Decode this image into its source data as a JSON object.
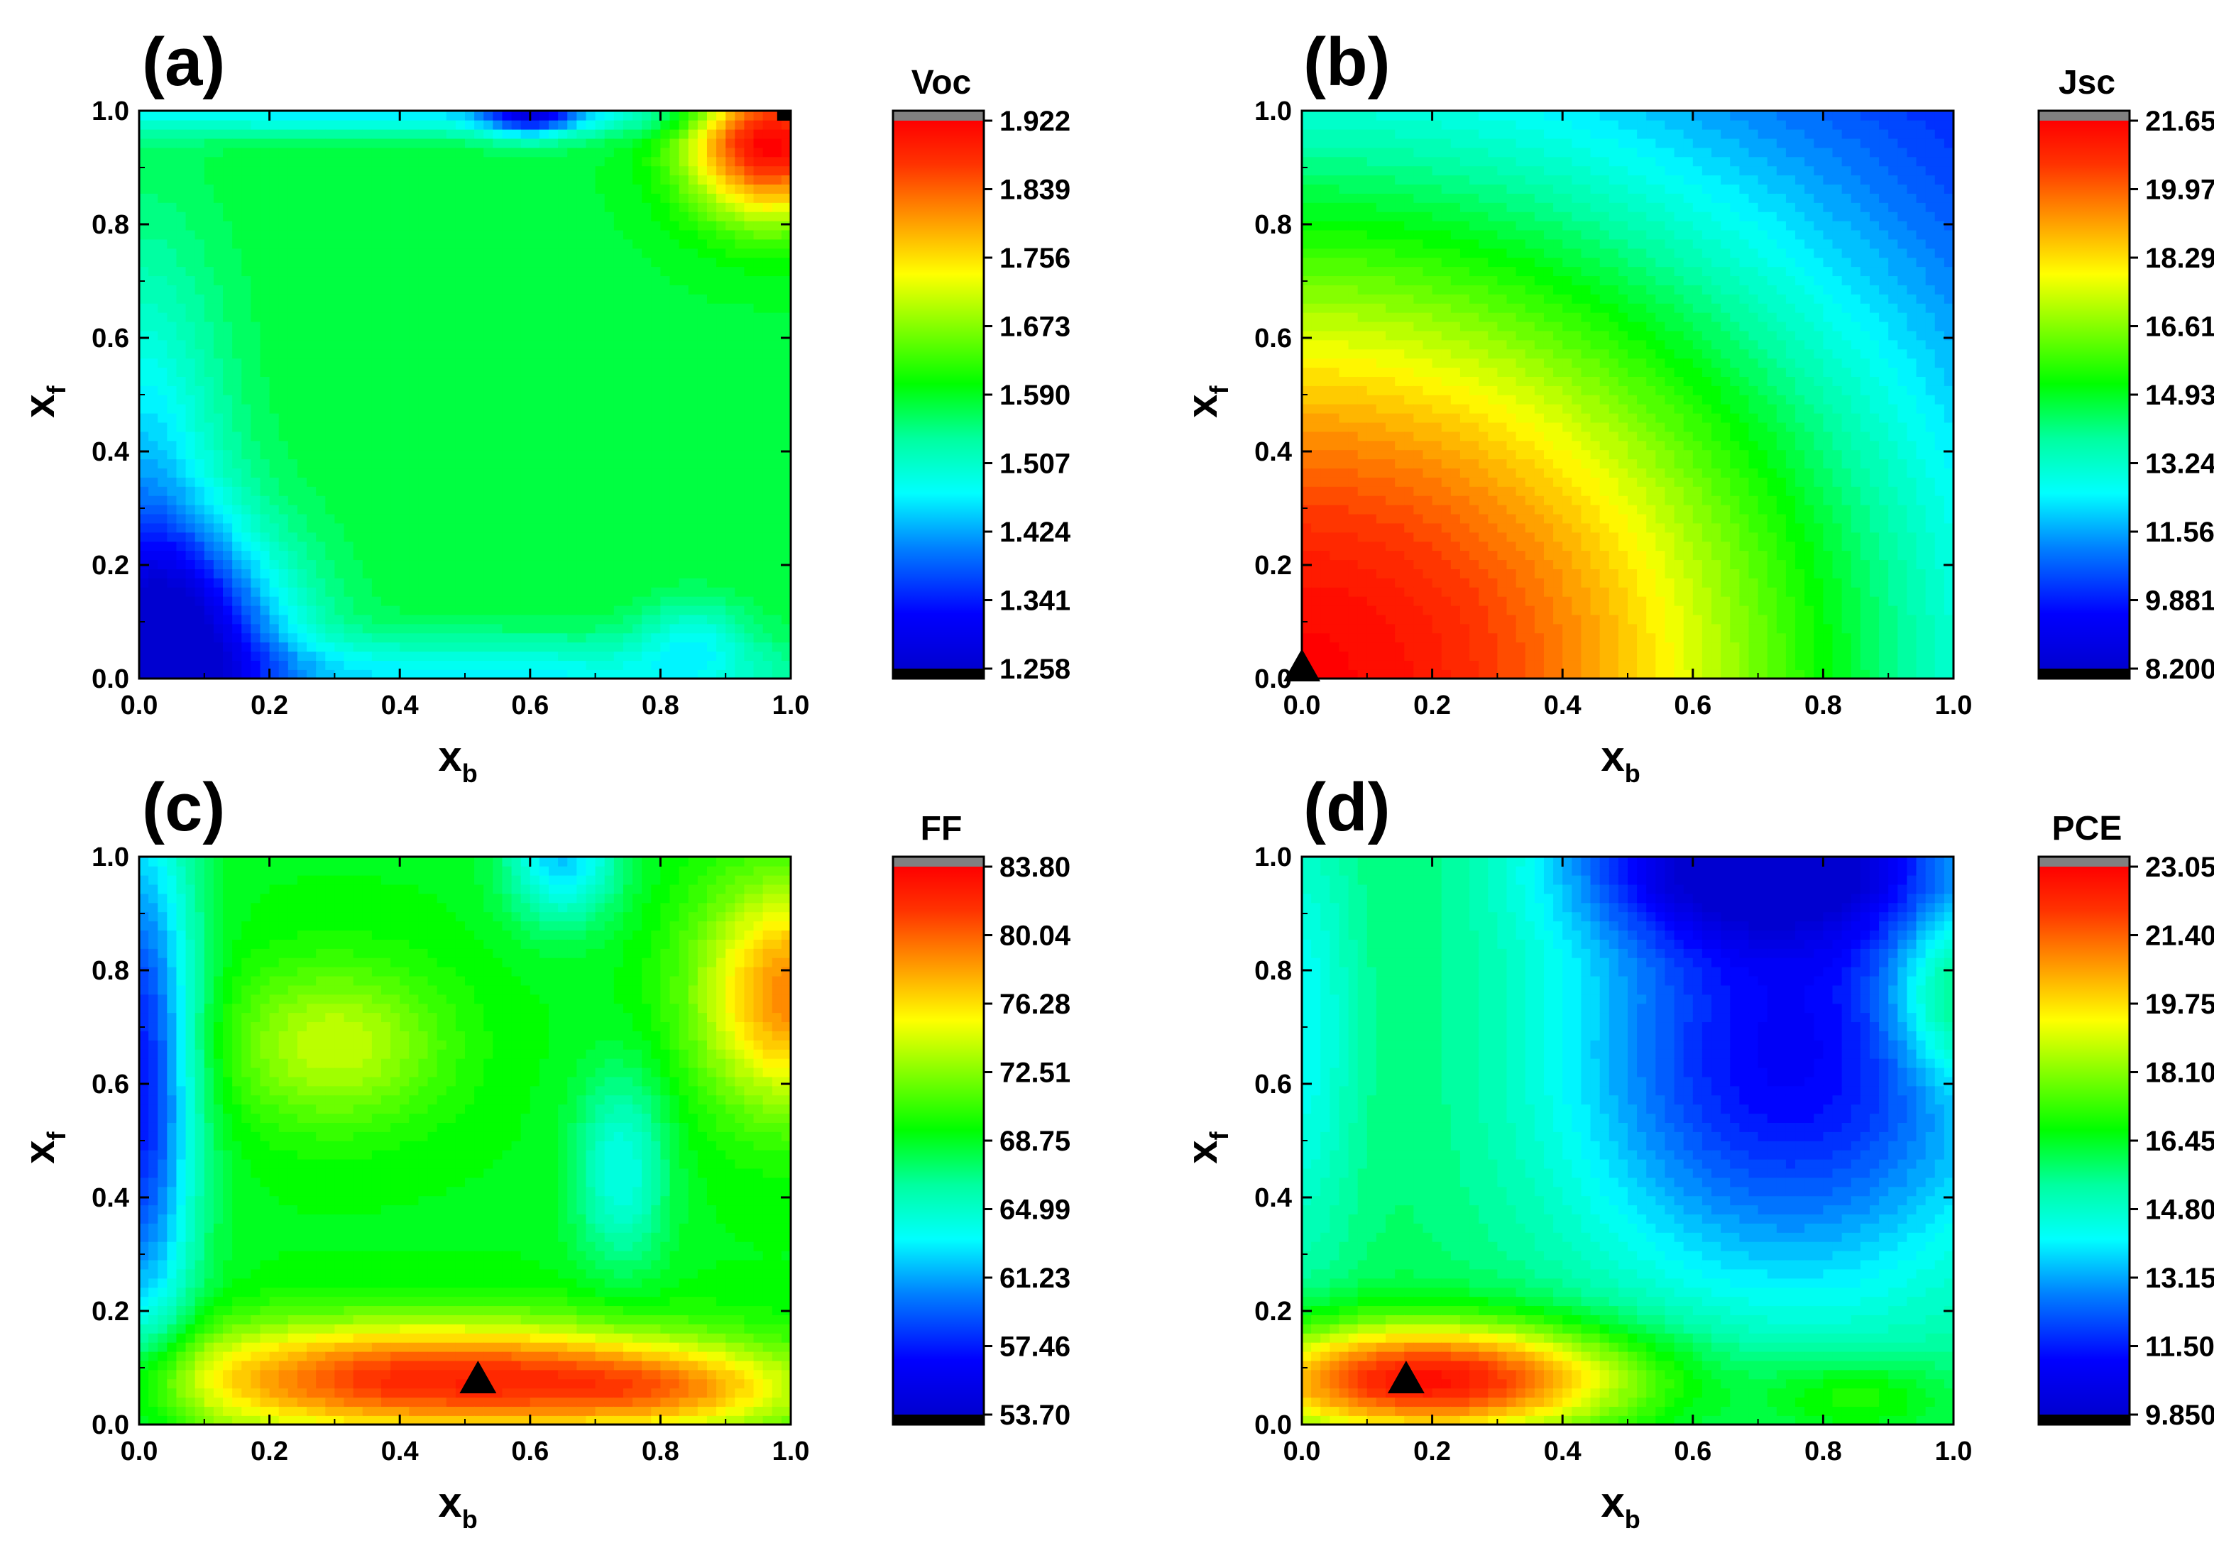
{
  "figure": {
    "description_panels": [
      "a",
      "b",
      "c",
      "d"
    ]
  },
  "chart_data": [
    {
      "type": "heatmap",
      "panel_label": "(a)",
      "title": "Voc",
      "xlabel": "x",
      "xlabel_sub": "b",
      "ylabel": "x",
      "ylabel_sub": "f",
      "xlim": [
        0.0,
        1.0
      ],
      "ylim": [
        0.0,
        1.0
      ],
      "xticks": [
        "0.0",
        "0.2",
        "0.4",
        "0.6",
        "0.8",
        "1.0"
      ],
      "yticks": [
        "0.0",
        "0.2",
        "0.4",
        "0.6",
        "0.8",
        "1.0"
      ],
      "colorbar": {
        "label": "Voc",
        "min": 1.258,
        "max": 1.922,
        "ticks": [
          "1.922",
          "1.839",
          "1.756",
          "1.673",
          "1.590",
          "1.507",
          "1.424",
          "1.341",
          "1.258"
        ]
      },
      "optimum_marker": {
        "shape": "square",
        "x": 0.99,
        "y": 0.99
      },
      "field": {
        "bg": 1.58,
        "bumps": [
          {
            "x": 0.97,
            "y": 0.96,
            "amp": 0.36,
            "sx": 0.09,
            "sy": 0.1
          },
          {
            "x": 0.06,
            "y": 0.06,
            "amp": -0.28,
            "sx": 0.12,
            "sy": 0.14
          },
          {
            "x": 0.0,
            "y": 0.3,
            "amp": -0.14,
            "sx": 0.09,
            "sy": 0.3
          },
          {
            "x": 0.5,
            "y": 0.0,
            "amp": -0.12,
            "sx": 0.35,
            "sy": 0.05
          },
          {
            "x": 0.4,
            "y": 1.0,
            "amp": -0.12,
            "sx": 0.5,
            "sy": 0.03
          },
          {
            "x": 0.6,
            "y": 1.0,
            "amp": -0.2,
            "sx": 0.05,
            "sy": 0.03
          },
          {
            "x": 0.85,
            "y": 0.07,
            "amp": -0.08,
            "sx": 0.06,
            "sy": 0.05
          }
        ]
      }
    },
    {
      "type": "heatmap",
      "panel_label": "(b)",
      "title": "Jsc",
      "xlabel": "x",
      "xlabel_sub": "b",
      "ylabel": "x",
      "ylabel_sub": "f",
      "xlim": [
        0.0,
        1.0
      ],
      "ylim": [
        0.0,
        1.0
      ],
      "xticks": [
        "0.0",
        "0.2",
        "0.4",
        "0.6",
        "0.8",
        "1.0"
      ],
      "yticks": [
        "0.0",
        "0.2",
        "0.4",
        "0.6",
        "0.8",
        "1.0"
      ],
      "colorbar": {
        "label": "Jsc",
        "min": 8.2,
        "max": 21.65,
        "ticks": [
          "21.65",
          "19.97",
          "18.29",
          "16.61",
          "14.93",
          "13.24",
          "11.56",
          "9.881",
          "8.200"
        ]
      },
      "optimum_marker": {
        "shape": "triangle",
        "x": 0.0,
        "y": 0.02
      },
      "field": {
        "bg": 8.3,
        "bumps": [
          {
            "x": 0.0,
            "y": 0.0,
            "amp": 13.3,
            "sx": 0.7,
            "sy": 0.7
          }
        ]
      }
    },
    {
      "type": "heatmap",
      "panel_label": "(c)",
      "title": "FF",
      "xlabel": "x",
      "xlabel_sub": "b",
      "ylabel": "x",
      "ylabel_sub": "f",
      "xlim": [
        0.0,
        1.0
      ],
      "ylim": [
        0.0,
        1.0
      ],
      "xticks": [
        "0.0",
        "0.2",
        "0.4",
        "0.6",
        "0.8",
        "1.0"
      ],
      "yticks": [
        "0.0",
        "0.2",
        "0.4",
        "0.6",
        "0.8",
        "1.0"
      ],
      "colorbar": {
        "label": "FF",
        "min": 53.7,
        "max": 83.8,
        "ticks": [
          "83.80",
          "80.04",
          "76.28",
          "72.51",
          "68.75",
          "64.99",
          "61.23",
          "57.46",
          "53.70"
        ]
      },
      "optimum_marker": {
        "shape": "triangle",
        "x": 0.52,
        "y": 0.08
      },
      "field": {
        "bg": 69.0,
        "bumps": [
          {
            "x": 0.45,
            "y": 0.08,
            "amp": 13.0,
            "sx": 0.3,
            "sy": 0.07
          },
          {
            "x": 0.82,
            "y": 0.06,
            "amp": 5.0,
            "sx": 0.15,
            "sy": 0.05
          },
          {
            "x": 1.0,
            "y": 0.76,
            "amp": 10.0,
            "sx": 0.1,
            "sy": 0.14
          },
          {
            "x": 0.3,
            "y": 0.67,
            "amp": 5.0,
            "sx": 0.12,
            "sy": 0.1
          },
          {
            "x": 0.0,
            "y": 0.6,
            "amp": -12.0,
            "sx": 0.06,
            "sy": 0.35
          },
          {
            "x": 0.74,
            "y": 0.45,
            "amp": -5.0,
            "sx": 0.05,
            "sy": 0.12
          },
          {
            "x": 0.65,
            "y": 1.0,
            "amp": -7.0,
            "sx": 0.06,
            "sy": 0.08
          }
        ]
      }
    },
    {
      "type": "heatmap",
      "panel_label": "(d)",
      "title": "PCE",
      "xlabel": "x",
      "xlabel_sub": "b",
      "ylabel": "x",
      "ylabel_sub": "f",
      "xlim": [
        0.0,
        1.0
      ],
      "ylim": [
        0.0,
        1.0
      ],
      "xticks": [
        "0.0",
        "0.2",
        "0.4",
        "0.6",
        "0.8",
        "1.0"
      ],
      "yticks": [
        "0.0",
        "0.2",
        "0.4",
        "0.6",
        "0.8",
        "1.0"
      ],
      "colorbar": {
        "label": "PCE",
        "min": 9.85,
        "max": 23.05,
        "ticks": [
          "23.05",
          "21.40",
          "19.75",
          "18.10",
          "16.45",
          "14.80",
          "13.15",
          "11.50",
          "9.850"
        ]
      },
      "optimum_marker": {
        "shape": "triangle",
        "x": 0.16,
        "y": 0.08
      },
      "field": {
        "bg": 16.0,
        "bumps": [
          {
            "x": 0.2,
            "y": 0.08,
            "amp": 6.8,
            "sx": 0.22,
            "sy": 0.07
          },
          {
            "x": 0.75,
            "y": 0.65,
            "amp": -5.0,
            "sx": 0.25,
            "sy": 0.3
          },
          {
            "x": 0.7,
            "y": 1.0,
            "amp": -5.0,
            "sx": 0.2,
            "sy": 0.1
          },
          {
            "x": 1.0,
            "y": 0.75,
            "amp": 2.5,
            "sx": 0.07,
            "sy": 0.1
          },
          {
            "x": 0.0,
            "y": 0.7,
            "amp": -1.8,
            "sx": 0.06,
            "sy": 0.3
          },
          {
            "x": 0.85,
            "y": 0.05,
            "amp": 1.5,
            "sx": 0.1,
            "sy": 0.05
          }
        ]
      }
    }
  ]
}
